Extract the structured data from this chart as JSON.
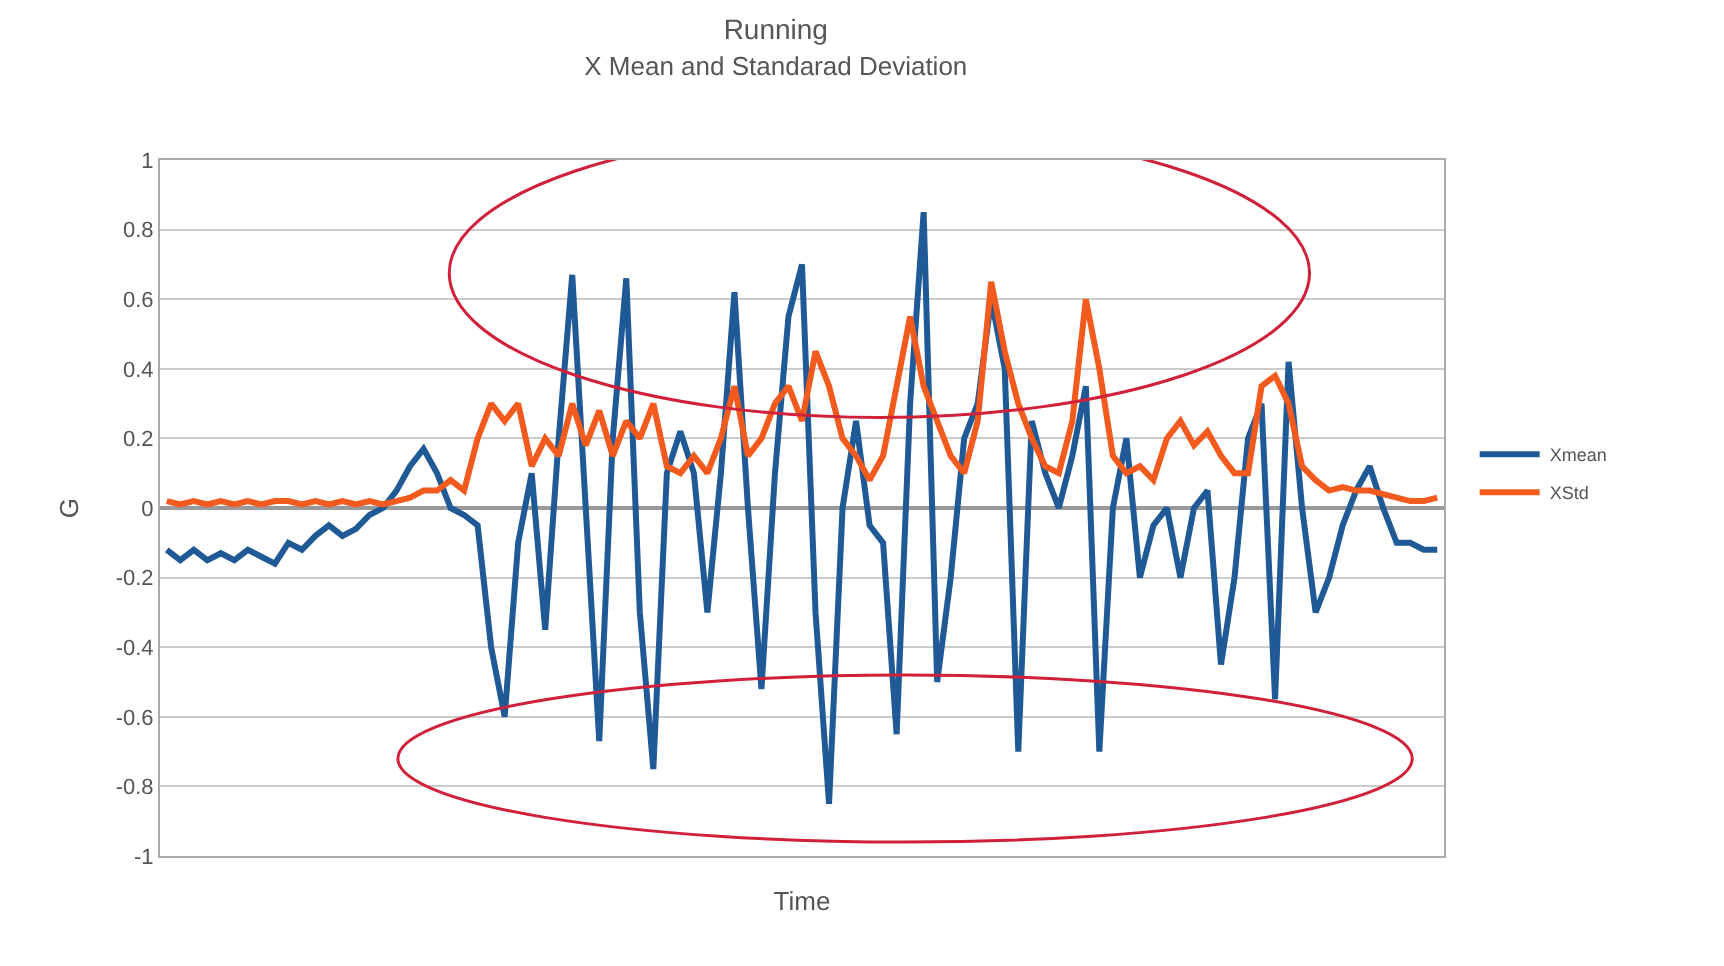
{
  "chart_data": {
    "type": "line",
    "title": "Running",
    "subtitle": "X Mean and Standarad Deviation",
    "xlabel": "Time",
    "ylabel": "G",
    "categories": [
      null,
      null,
      null,
      null,
      null,
      null,
      null,
      null,
      null,
      null,
      null,
      null,
      null,
      null,
      null,
      null,
      null,
      null,
      null,
      null,
      null,
      null,
      null,
      null,
      null,
      null,
      null,
      null,
      null,
      null,
      null,
      null,
      null,
      null,
      null,
      null,
      null,
      null,
      null,
      null,
      null,
      null,
      null,
      null,
      null,
      null,
      null,
      null,
      null,
      null,
      null,
      null,
      null,
      null,
      null,
      null,
      null,
      null,
      null,
      null,
      null,
      null,
      null,
      null,
      null,
      null,
      null,
      null,
      null,
      null,
      null,
      null,
      null,
      null,
      null,
      null,
      null,
      null,
      null,
      null,
      null,
      null,
      null,
      null,
      null,
      null,
      null,
      null,
      null,
      null,
      null,
      null,
      null,
      null,
      null
    ],
    "series": [
      {
        "name": "Xmean",
        "color": "#1f5a96",
        "values": [
          -0.12,
          -0.15,
          -0.12,
          -0.15,
          -0.13,
          -0.15,
          -0.12,
          -0.14,
          -0.16,
          -0.1,
          -0.12,
          -0.08,
          -0.05,
          -0.08,
          -0.06,
          -0.02,
          0.0,
          0.05,
          0.12,
          0.17,
          0.1,
          0.0,
          -0.02,
          -0.05,
          -0.4,
          -0.6,
          -0.1,
          0.1,
          -0.35,
          0.2,
          0.67,
          0.0,
          -0.67,
          0.2,
          0.66,
          -0.3,
          -0.75,
          0.1,
          0.22,
          0.1,
          -0.3,
          0.1,
          0.62,
          0.0,
          -0.52,
          0.1,
          0.55,
          0.7,
          -0.3,
          -0.85,
          0.0,
          0.25,
          -0.05,
          -0.1,
          -0.65,
          0.3,
          0.85,
          -0.5,
          -0.2,
          0.2,
          0.3,
          0.6,
          0.4,
          -0.7,
          0.25,
          0.1,
          0.0,
          0.15,
          0.35,
          -0.7,
          0.0,
          0.2,
          -0.2,
          -0.05,
          0.0,
          -0.2,
          0.0,
          0.05,
          -0.45,
          -0.2,
          0.2,
          0.3,
          -0.55,
          0.42,
          0.0,
          -0.3,
          -0.2,
          -0.05,
          0.05,
          0.12,
          0.0,
          -0.1,
          -0.1,
          -0.12,
          -0.12
        ]
      },
      {
        "name": "XStd",
        "color": "#f25a1e",
        "values": [
          0.02,
          0.01,
          0.02,
          0.01,
          0.02,
          0.01,
          0.02,
          0.01,
          0.02,
          0.02,
          0.01,
          0.02,
          0.01,
          0.02,
          0.01,
          0.02,
          0.01,
          0.02,
          0.03,
          0.05,
          0.05,
          0.08,
          0.05,
          0.2,
          0.3,
          0.25,
          0.3,
          0.12,
          0.2,
          0.15,
          0.3,
          0.18,
          0.28,
          0.15,
          0.25,
          0.2,
          0.3,
          0.12,
          0.1,
          0.15,
          0.1,
          0.2,
          0.35,
          0.15,
          0.2,
          0.3,
          0.35,
          0.25,
          0.45,
          0.35,
          0.2,
          0.15,
          0.08,
          0.15,
          0.35,
          0.55,
          0.35,
          0.25,
          0.15,
          0.1,
          0.25,
          0.65,
          0.45,
          0.3,
          0.2,
          0.12,
          0.1,
          0.25,
          0.6,
          0.4,
          0.15,
          0.1,
          0.12,
          0.08,
          0.2,
          0.25,
          0.18,
          0.22,
          0.15,
          0.1,
          0.1,
          0.35,
          0.38,
          0.3,
          0.12,
          0.08,
          0.05,
          0.06,
          0.05,
          0.05,
          0.04,
          0.03,
          0.02,
          0.02,
          0.03
        ]
      }
    ],
    "ylim": [
      -1,
      1
    ],
    "yticks": [
      -1,
      -0.8,
      -0.6,
      -0.4,
      -0.2,
      0,
      0.2,
      0.4,
      0.6,
      0.8,
      1
    ],
    "grid": "y",
    "legend": "right",
    "marker": "none",
    "line_style": "solid"
  }
}
